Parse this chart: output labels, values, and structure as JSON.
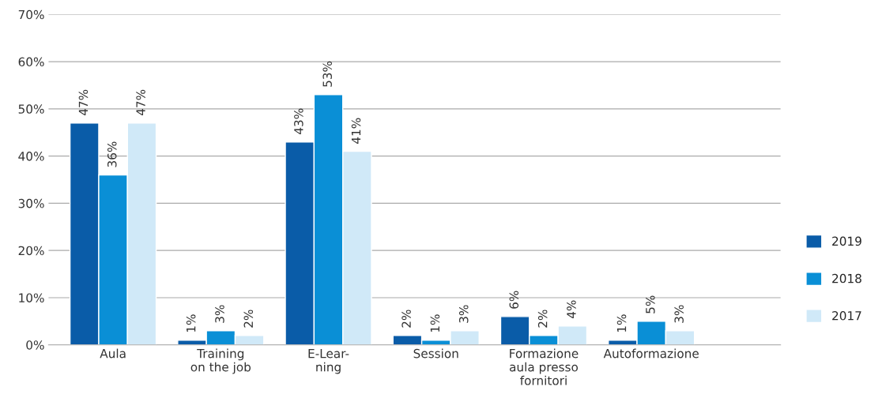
{
  "chart_data": {
    "type": "bar",
    "categories": [
      "Aula",
      "Training\non the job",
      "E-Lear-\nning",
      "Session",
      "Formazione\naula presso\nfornitori",
      "Autoformazione"
    ],
    "series": [
      {
        "name": "2019",
        "color": "#0a5ca8",
        "values": [
          47,
          1,
          43,
          2,
          6,
          1
        ],
        "value_labels": [
          "47%",
          "1%",
          "43%",
          "2%",
          "6%",
          "1%"
        ]
      },
      {
        "name": "2018",
        "color": "#0a8fd6",
        "values": [
          36,
          3,
          53,
          1,
          2,
          5
        ],
        "value_labels": [
          "36%",
          "3%",
          "53%",
          "1%",
          "2%",
          "5%"
        ]
      },
      {
        "name": "2017",
        "color": "#d0e9f8",
        "values": [
          47,
          2,
          41,
          3,
          4,
          3
        ],
        "value_labels": [
          "47%",
          "2%",
          "41%",
          "3%",
          "4%",
          "3%"
        ]
      }
    ],
    "ylim": [
      0,
      70
    ],
    "yticks": [
      {
        "value": 0,
        "label": "0%"
      },
      {
        "value": 10,
        "label": "10%"
      },
      {
        "value": 20,
        "label": "20%"
      },
      {
        "value": 30,
        "label": "30%"
      },
      {
        "value": 40,
        "label": "40%"
      },
      {
        "value": 50,
        "label": "50%"
      },
      {
        "value": 60,
        "label": "60%"
      },
      {
        "value": 70,
        "label": "70%"
      }
    ],
    "grid": "y",
    "legend": "right"
  }
}
